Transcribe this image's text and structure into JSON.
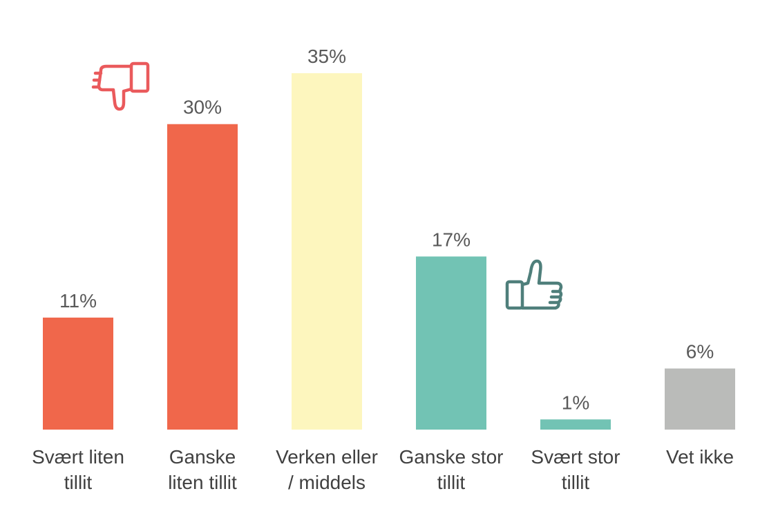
{
  "chart_data": {
    "type": "bar",
    "categories": [
      [
        "Svært liten",
        "tillit"
      ],
      [
        "Ganske",
        "liten tillit"
      ],
      [
        "Verken eller",
        "/ middels"
      ],
      [
        "Ganske stor",
        "tillit"
      ],
      [
        "Svært stor",
        "tillit"
      ],
      [
        "Vet ikke"
      ]
    ],
    "values": [
      11,
      30,
      35,
      17,
      1,
      6
    ],
    "value_labels": [
      "11%",
      "30%",
      "35%",
      "17%",
      "1%",
      "6%"
    ],
    "unit": "%",
    "colors": [
      "#f0674b",
      "#f0674b",
      "#fdf6be",
      "#72c3b4",
      "#72c3b4",
      "#babbb9"
    ],
    "ylim": [
      0,
      35
    ],
    "grid": false,
    "legend": "none",
    "icons": [
      {
        "name": "thumbs-down-icon",
        "color": "#ea5a5c"
      },
      {
        "name": "thumbs-up-icon",
        "color": "#4f7f7b"
      }
    ]
  }
}
